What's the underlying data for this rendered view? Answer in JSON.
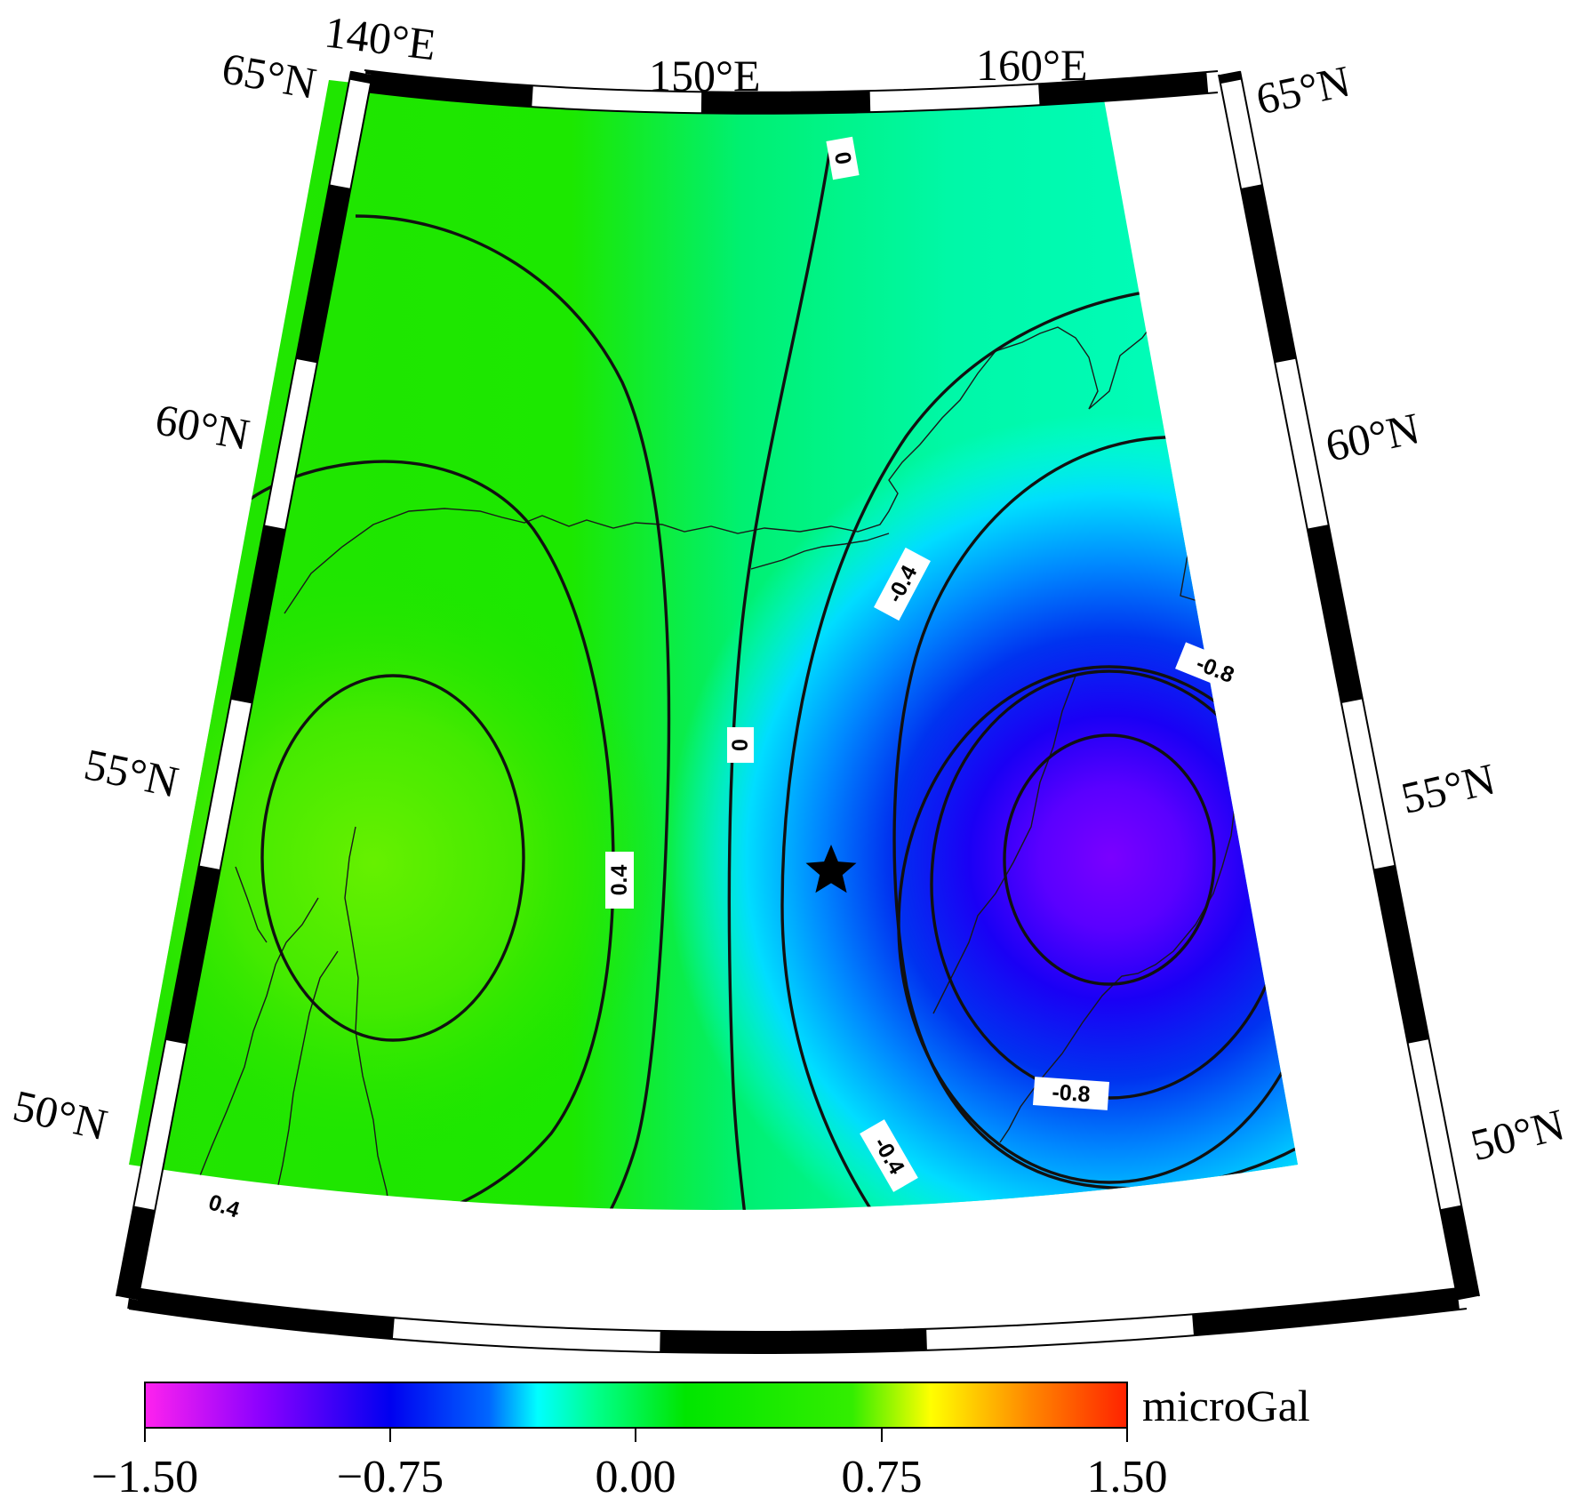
{
  "map": {
    "longitude_labels": [
      "140°E",
      "150°E",
      "160°E"
    ],
    "latitude_labels_left": [
      "65°N",
      "60°N",
      "55°N",
      "50°N"
    ],
    "latitude_labels_right": [
      "65°N",
      "60°N",
      "55°N",
      "50°N"
    ],
    "contour_labels": [
      "0",
      "0",
      "0.4",
      "0.4",
      "-0.4",
      "-0.4",
      "-0.8",
      "-0.8"
    ],
    "marker": "epicenter-star"
  },
  "colorbar": {
    "unit": "microGal",
    "ticks": [
      "−1.50",
      "−0.75",
      "0.00",
      "0.75",
      "1.50"
    ],
    "range": [
      -1.5,
      1.5
    ],
    "colors": [
      "#ff22ee",
      "#8a00ff",
      "#0000f0",
      "#0066ff",
      "#00ffff",
      "#00ff6a",
      "#00e600",
      "#33ee00",
      "#ffff00",
      "#ff8800",
      "#ff2200"
    ]
  }
}
